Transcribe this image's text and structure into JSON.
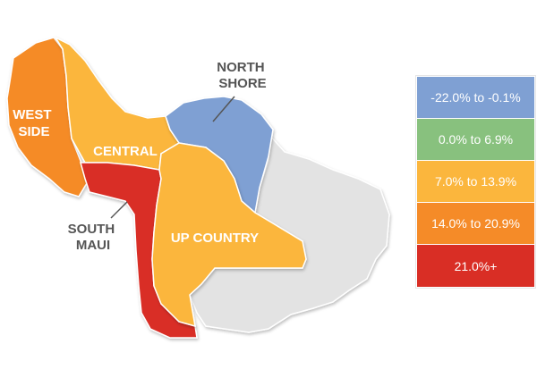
{
  "colors": {
    "blue": "#7fa0d3",
    "green": "#88c17e",
    "yellow": "#fbb63d",
    "orange": "#f58b28",
    "red": "#d92e25",
    "gray": "#e3e3e3",
    "label_text": "#ffffff",
    "external_label_text": "#555555"
  },
  "regions": {
    "west_side": {
      "label_line1": "WEST",
      "label_line2": "SIDE",
      "legend_bin": 3
    },
    "central": {
      "label": "CENTRAL",
      "legend_bin": 2
    },
    "south_maui": {
      "label_line1": "SOUTH",
      "label_line2": "MAUI",
      "legend_bin": 4
    },
    "north_shore": {
      "label_line1": "NORTH",
      "label_line2": "SHORE",
      "legend_bin": 0
    },
    "up_country": {
      "label": "UP COUNTRY",
      "legend_bin": 2
    }
  },
  "legend": [
    {
      "label": "-22.0% to -0.1%",
      "color": "#7fa0d3"
    },
    {
      "label": "0.0% to 6.9%",
      "color": "#88c17e"
    },
    {
      "label": "7.0% to 13.9%",
      "color": "#fbb63d"
    },
    {
      "label": "14.0% to 20.9%",
      "color": "#f58b28"
    },
    {
      "label": "21.0%+",
      "color": "#d92e25"
    }
  ]
}
